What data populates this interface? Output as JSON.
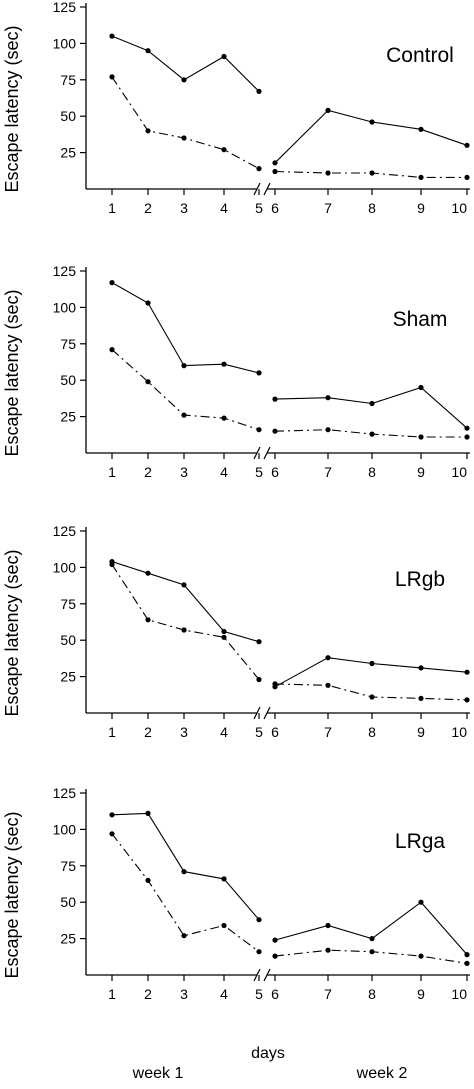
{
  "footer": {
    "week1": "week 1",
    "days": "days",
    "week2": "week 2"
  },
  "chart_data": [
    {
      "type": "line",
      "title": "Control",
      "ylabel": "Escape latency (sec)",
      "ylim": [
        0,
        125
      ],
      "yticks": [
        25,
        50,
        75,
        100,
        125
      ],
      "x": [
        1,
        2,
        3,
        4,
        5,
        6,
        7,
        8,
        9,
        10
      ],
      "series": [
        {
          "style": "solid",
          "values": [
            105,
            95,
            75,
            91,
            67,
            18,
            54,
            46,
            41,
            30
          ]
        },
        {
          "style": "dashed",
          "values": [
            77,
            40,
            35,
            27,
            14,
            12,
            11,
            11,
            8,
            8
          ]
        }
      ]
    },
    {
      "type": "line",
      "title": "Sham",
      "ylabel": "Escape latency (sec)",
      "ylim": [
        0,
        125
      ],
      "yticks": [
        25,
        50,
        75,
        100,
        125
      ],
      "x": [
        1,
        2,
        3,
        4,
        5,
        6,
        7,
        8,
        9,
        10
      ],
      "series": [
        {
          "style": "solid",
          "values": [
            117,
            103,
            60,
            61,
            55,
            37,
            38,
            34,
            45,
            17
          ]
        },
        {
          "style": "dashed",
          "values": [
            71,
            49,
            26,
            24,
            16,
            15,
            16,
            13,
            11,
            11
          ]
        }
      ]
    },
    {
      "type": "line",
      "title": "LRgb",
      "ylabel": "Escape latency (sec)",
      "ylim": [
        0,
        125
      ],
      "yticks": [
        25,
        50,
        75,
        100,
        125
      ],
      "x": [
        1,
        2,
        3,
        4,
        5,
        6,
        7,
        8,
        9,
        10
      ],
      "series": [
        {
          "style": "solid",
          "values": [
            104,
            96,
            88,
            56,
            49,
            18,
            38,
            34,
            31,
            28
          ]
        },
        {
          "style": "dashed",
          "values": [
            102,
            64,
            57,
            52,
            23,
            20,
            19,
            11,
            10,
            9
          ]
        }
      ]
    },
    {
      "type": "line",
      "title": "LRga",
      "ylabel": "Escape latency (sec)",
      "ylim": [
        0,
        125
      ],
      "yticks": [
        25,
        50,
        75,
        100,
        125
      ],
      "x": [
        1,
        2,
        3,
        4,
        5,
        6,
        7,
        8,
        9,
        10
      ],
      "series": [
        {
          "style": "solid",
          "values": [
            110,
            111,
            71,
            66,
            38,
            24,
            34,
            25,
            50,
            14
          ]
        },
        {
          "style": "dashed",
          "values": [
            97,
            65,
            27,
            34,
            16,
            13,
            17,
            16,
            13,
            8
          ]
        }
      ]
    }
  ]
}
